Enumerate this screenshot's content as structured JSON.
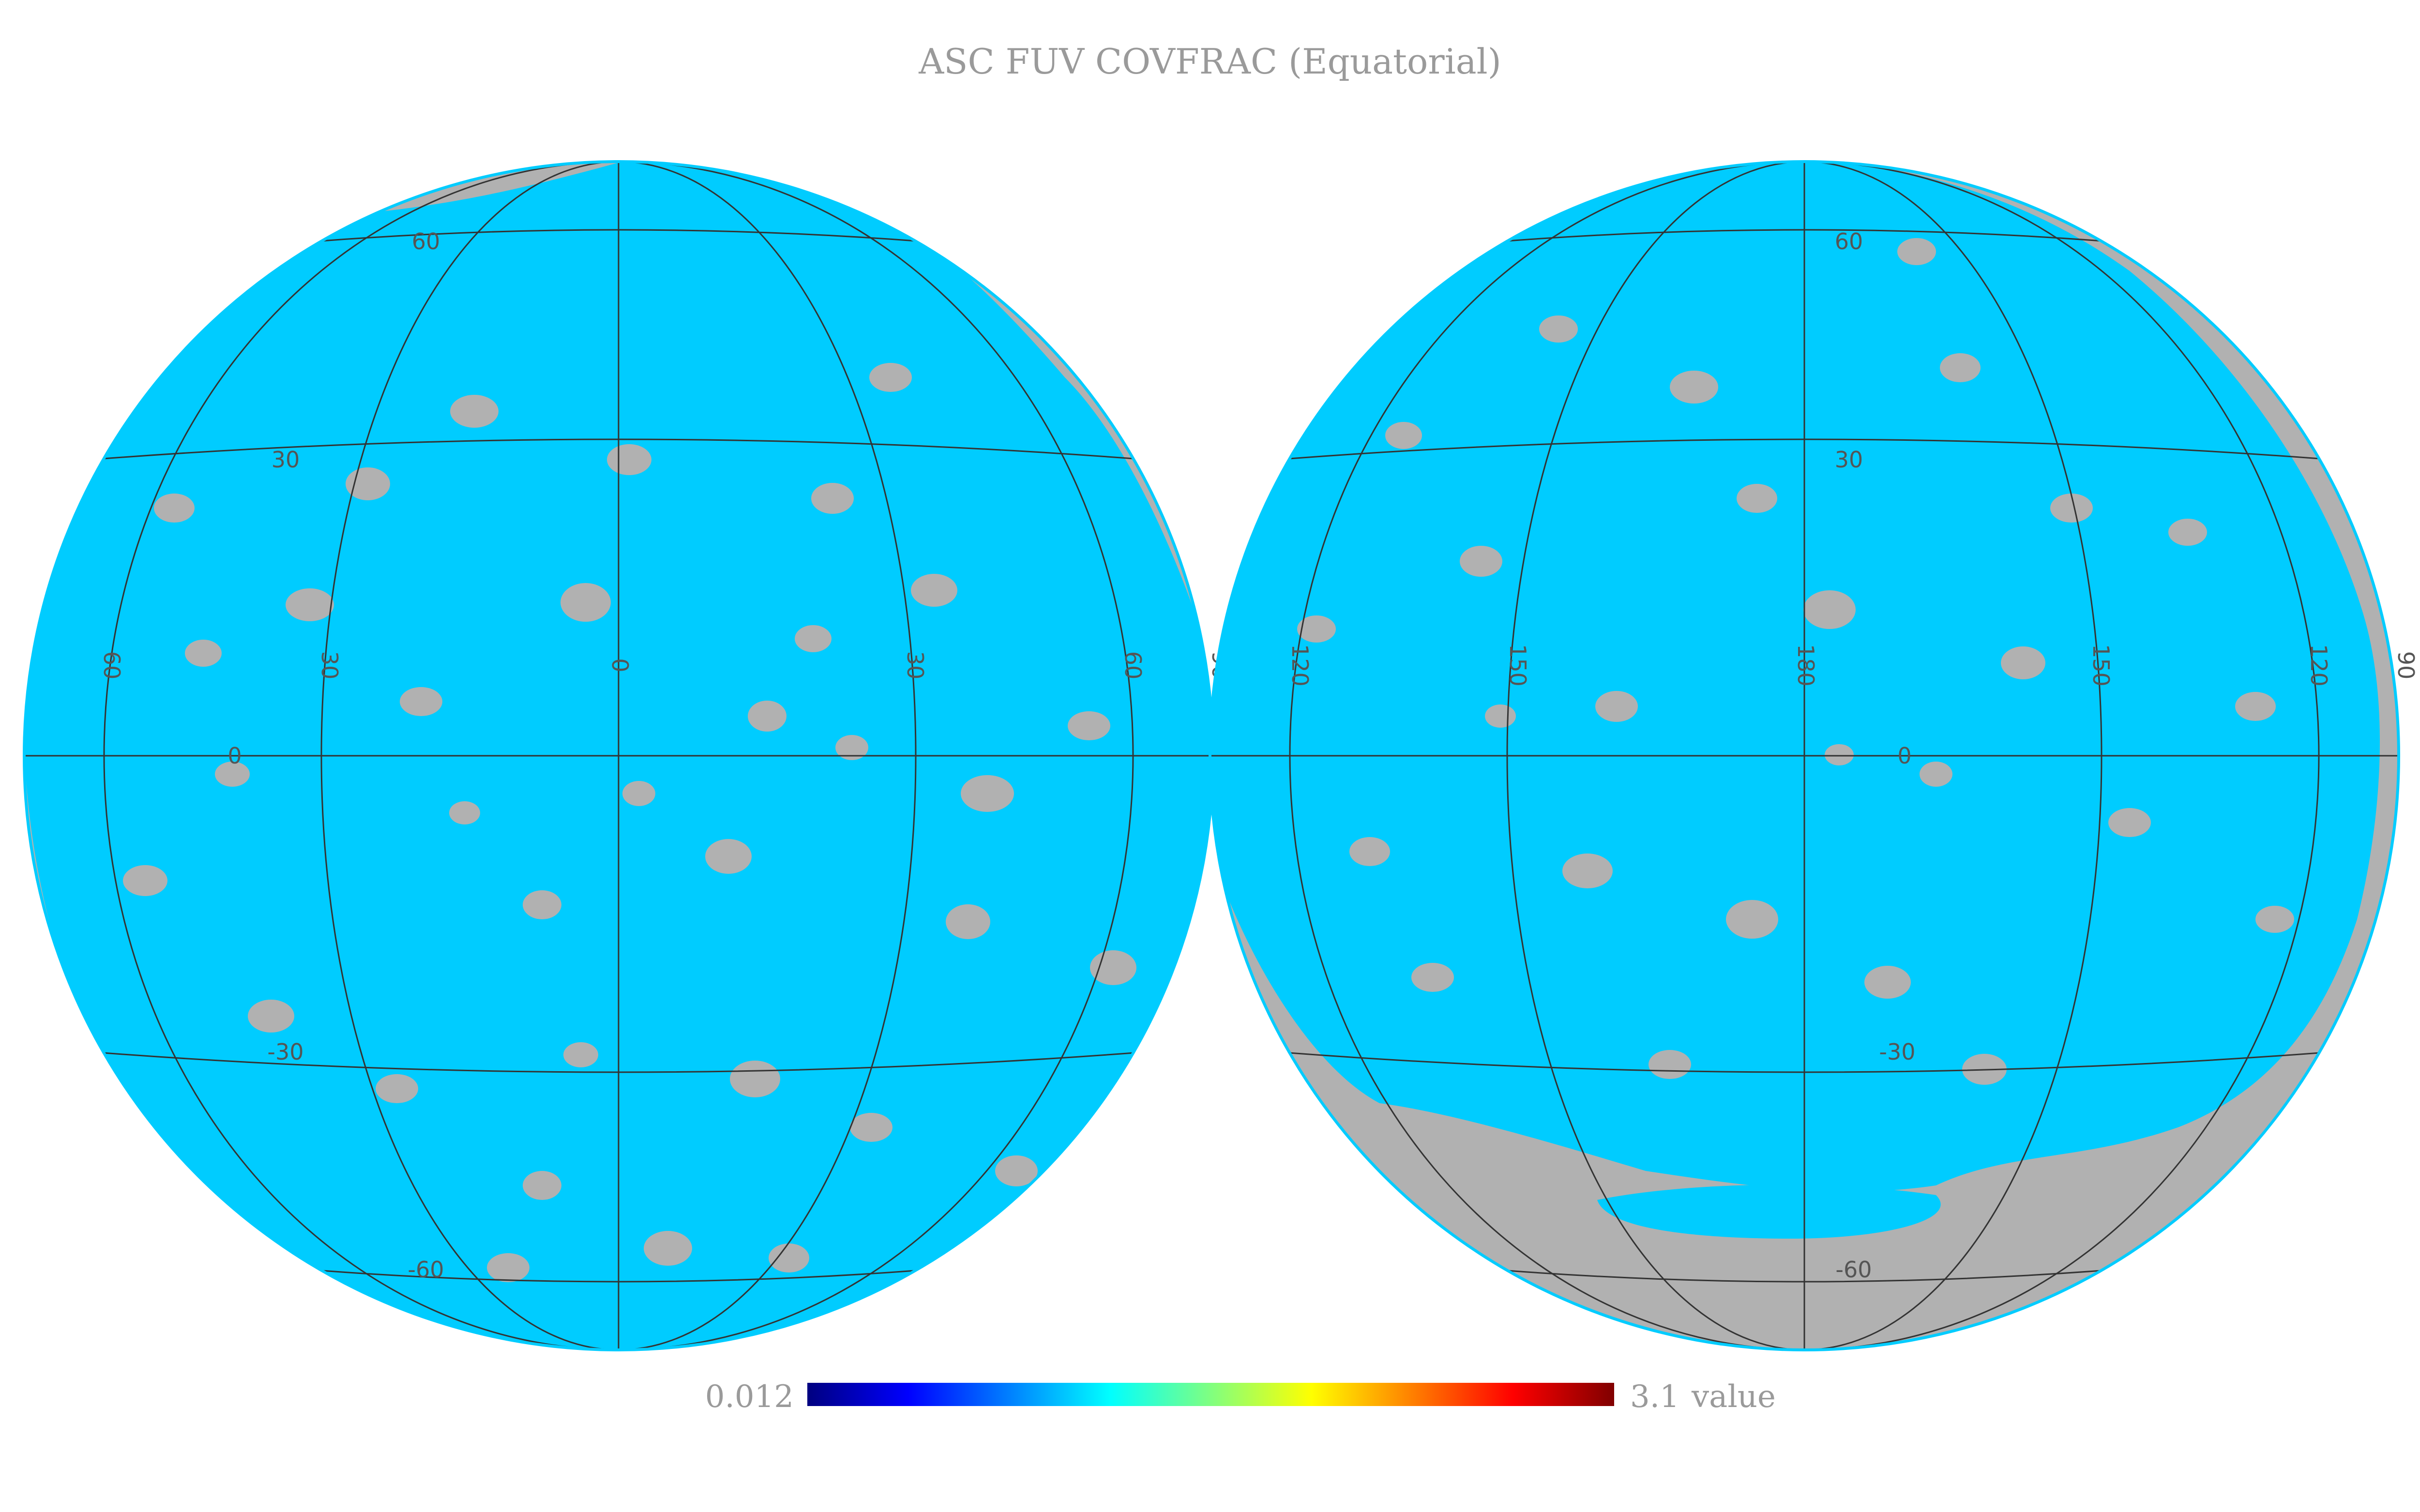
{
  "title": "ASC FUV COVFRAC (Equatorial)",
  "colors": {
    "coverage": "#00ccff",
    "uncovered": "#b1b1b1",
    "graticule": "#333333",
    "title": "#9a9a9a",
    "colormap": "jet"
  },
  "hemispheres": [
    {
      "name": "left",
      "dec_labels": [
        "60",
        "30",
        "0",
        "-30",
        "-60"
      ],
      "ra_labels": [
        "60",
        "30",
        "0",
        "30",
        "60",
        "90"
      ]
    },
    {
      "name": "right",
      "dec_labels": [
        "60",
        "30",
        "0",
        "-30",
        "-60"
      ],
      "ra_labels": [
        "120",
        "150",
        "180",
        "150",
        "120",
        "90"
      ]
    }
  ],
  "colorbar": {
    "min_label": "0.012",
    "max_label": "3.1",
    "unit_label": "value",
    "colormap": "jet"
  }
}
